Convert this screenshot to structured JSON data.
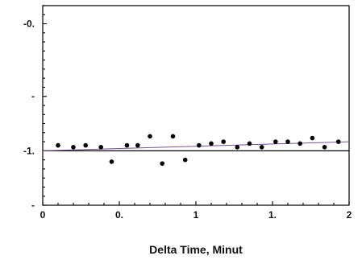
{
  "chart_data": {
    "type": "scatter",
    "title": "",
    "xlabel": "Delta Time, Minut",
    "ylabel": "",
    "xlim": [
      0,
      2
    ],
    "ylim": [
      -1.3,
      -0.2
    ],
    "x_ticks": [
      {
        "value": 0,
        "label": "0"
      },
      {
        "value": 0.5,
        "label": "0."
      },
      {
        "value": 1,
        "label": "1"
      },
      {
        "value": 1.5,
        "label": "1."
      },
      {
        "value": 2,
        "label": "2"
      }
    ],
    "y_ticks": [
      {
        "value": -0.3,
        "label": "-0."
      },
      {
        "value": -0.7,
        "label": "-"
      },
      {
        "value": -1.0,
        "label": "-1."
      },
      {
        "value": -1.3,
        "label": "-"
      }
    ],
    "reference_line": {
      "y": -1.0,
      "color": "#000000"
    },
    "trend_line": {
      "x": [
        0,
        2
      ],
      "y": [
        -1.0,
        -0.95
      ],
      "color": "#7a4f9a"
    },
    "grid": false,
    "point_color": "#000000",
    "points": [
      {
        "x": 0.1,
        "y": -0.97
      },
      {
        "x": 0.2,
        "y": -0.98
      },
      {
        "x": 0.28,
        "y": -0.97
      },
      {
        "x": 0.38,
        "y": -0.98
      },
      {
        "x": 0.45,
        "y": -1.06
      },
      {
        "x": 0.55,
        "y": -0.97
      },
      {
        "x": 0.62,
        "y": -0.97
      },
      {
        "x": 0.7,
        "y": -0.92
      },
      {
        "x": 0.78,
        "y": -1.07
      },
      {
        "x": 0.85,
        "y": -0.92
      },
      {
        "x": 0.93,
        "y": -1.05
      },
      {
        "x": 1.02,
        "y": -0.97
      },
      {
        "x": 1.1,
        "y": -0.96
      },
      {
        "x": 1.18,
        "y": -0.95
      },
      {
        "x": 1.27,
        "y": -0.98
      },
      {
        "x": 1.35,
        "y": -0.96
      },
      {
        "x": 1.43,
        "y": -0.98
      },
      {
        "x": 1.52,
        "y": -0.95
      },
      {
        "x": 1.6,
        "y": -0.95
      },
      {
        "x": 1.68,
        "y": -0.96
      },
      {
        "x": 1.76,
        "y": -0.93
      },
      {
        "x": 1.84,
        "y": -0.98
      },
      {
        "x": 1.93,
        "y": -0.95
      }
    ]
  }
}
